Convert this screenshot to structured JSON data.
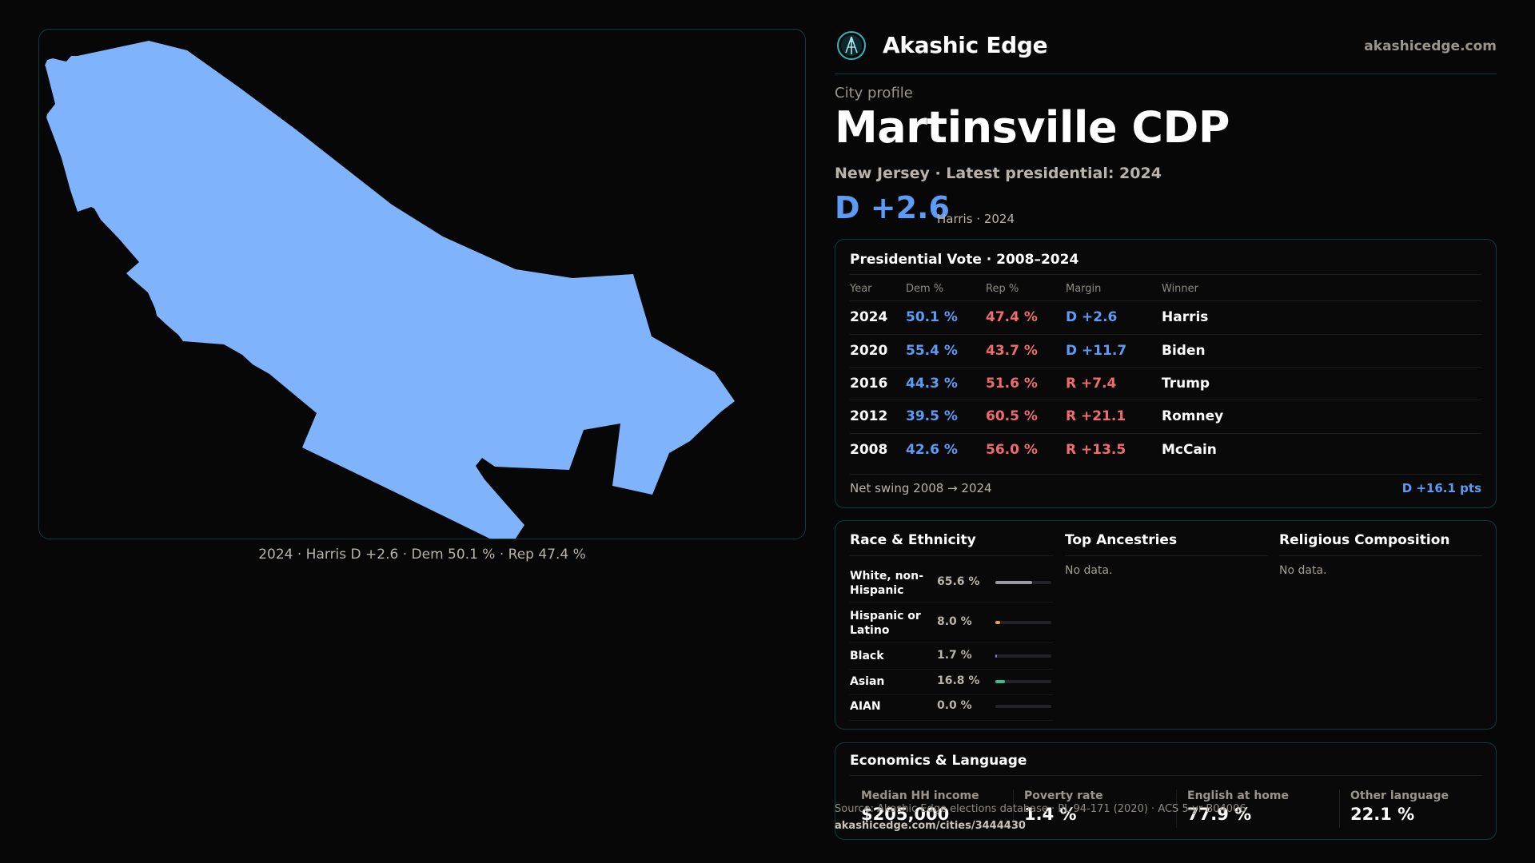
{
  "map": {
    "caption": "2024 · Harris D +2.6 · Dem 50.1 % · Rep 47.4 %",
    "fill_color": "#7fb3fb"
  },
  "brand": {
    "name": "Akashic Edge",
    "url": "akashicedge.com",
    "logo_icon": "akashic-edge-logo"
  },
  "profile": {
    "kicker": "City profile",
    "title": "Martinsville CDP",
    "subtitle": "New Jersey · Latest presidential: 2024",
    "margin": "D +2.6",
    "margin_note": "Harris · 2024"
  },
  "vote": {
    "title": "Presidential Vote · 2008–2024",
    "headers": {
      "year": "Year",
      "dem": "Dem %",
      "rep": "Rep %",
      "margin": "Margin",
      "winner": "Winner"
    },
    "rows": [
      {
        "year": "2024",
        "dem": "50.1 %",
        "rep": "47.4 %",
        "margin": "D +2.6",
        "winner": "Harris",
        "party": "D"
      },
      {
        "year": "2020",
        "dem": "55.4 %",
        "rep": "43.7 %",
        "margin": "D +11.7",
        "winner": "Biden",
        "party": "D"
      },
      {
        "year": "2016",
        "dem": "44.3 %",
        "rep": "51.6 %",
        "margin": "R +7.4",
        "winner": "Trump",
        "party": "R"
      },
      {
        "year": "2012",
        "dem": "39.5 %",
        "rep": "60.5 %",
        "margin": "R +21.1",
        "winner": "Romney",
        "party": "R"
      },
      {
        "year": "2008",
        "dem": "42.6 %",
        "rep": "56.0 %",
        "margin": "R +13.5",
        "winner": "McCain",
        "party": "R"
      }
    ],
    "swing_label": "Net swing 2008 → 2024",
    "swing_value": "D +16.1 pts"
  },
  "demographics": {
    "race_title": "Race & Ethnicity",
    "race": [
      {
        "label": "White, non-Hispanic",
        "pct": "65.6 %",
        "value": 0.656,
        "color": "#9a9aa2"
      },
      {
        "label": "Hispanic or Latino",
        "pct": "8.0 %",
        "value": 0.08,
        "color": "#e8a33a"
      },
      {
        "label": "Black",
        "pct": "1.7 %",
        "value": 0.017,
        "color": "#7b6cf0"
      },
      {
        "label": "Asian",
        "pct": "16.8 %",
        "value": 0.168,
        "color": "#2fc28c"
      },
      {
        "label": "AIAN",
        "pct": "0.0 %",
        "value": 0.0,
        "color": "#c25f9a"
      }
    ],
    "ancestry_title": "Top Ancestries",
    "ancestry_empty": "No data.",
    "religion_title": "Religious Composition",
    "religion_empty": "No data."
  },
  "economics": {
    "title": "Economics & Language",
    "stats": [
      {
        "label": "Median HH income",
        "value": "$205,000"
      },
      {
        "label": "Poverty rate",
        "value": "1.4 %"
      },
      {
        "label": "English at home",
        "value": "77.9 %"
      },
      {
        "label": "Other language",
        "value": "22.1 %"
      }
    ]
  },
  "footer": {
    "source": "Source: Akashic Edge elections database · PL 94-171 (2020) · ACS 5-yr B04006",
    "url": "akashicedge.com/cities/3444430"
  }
}
